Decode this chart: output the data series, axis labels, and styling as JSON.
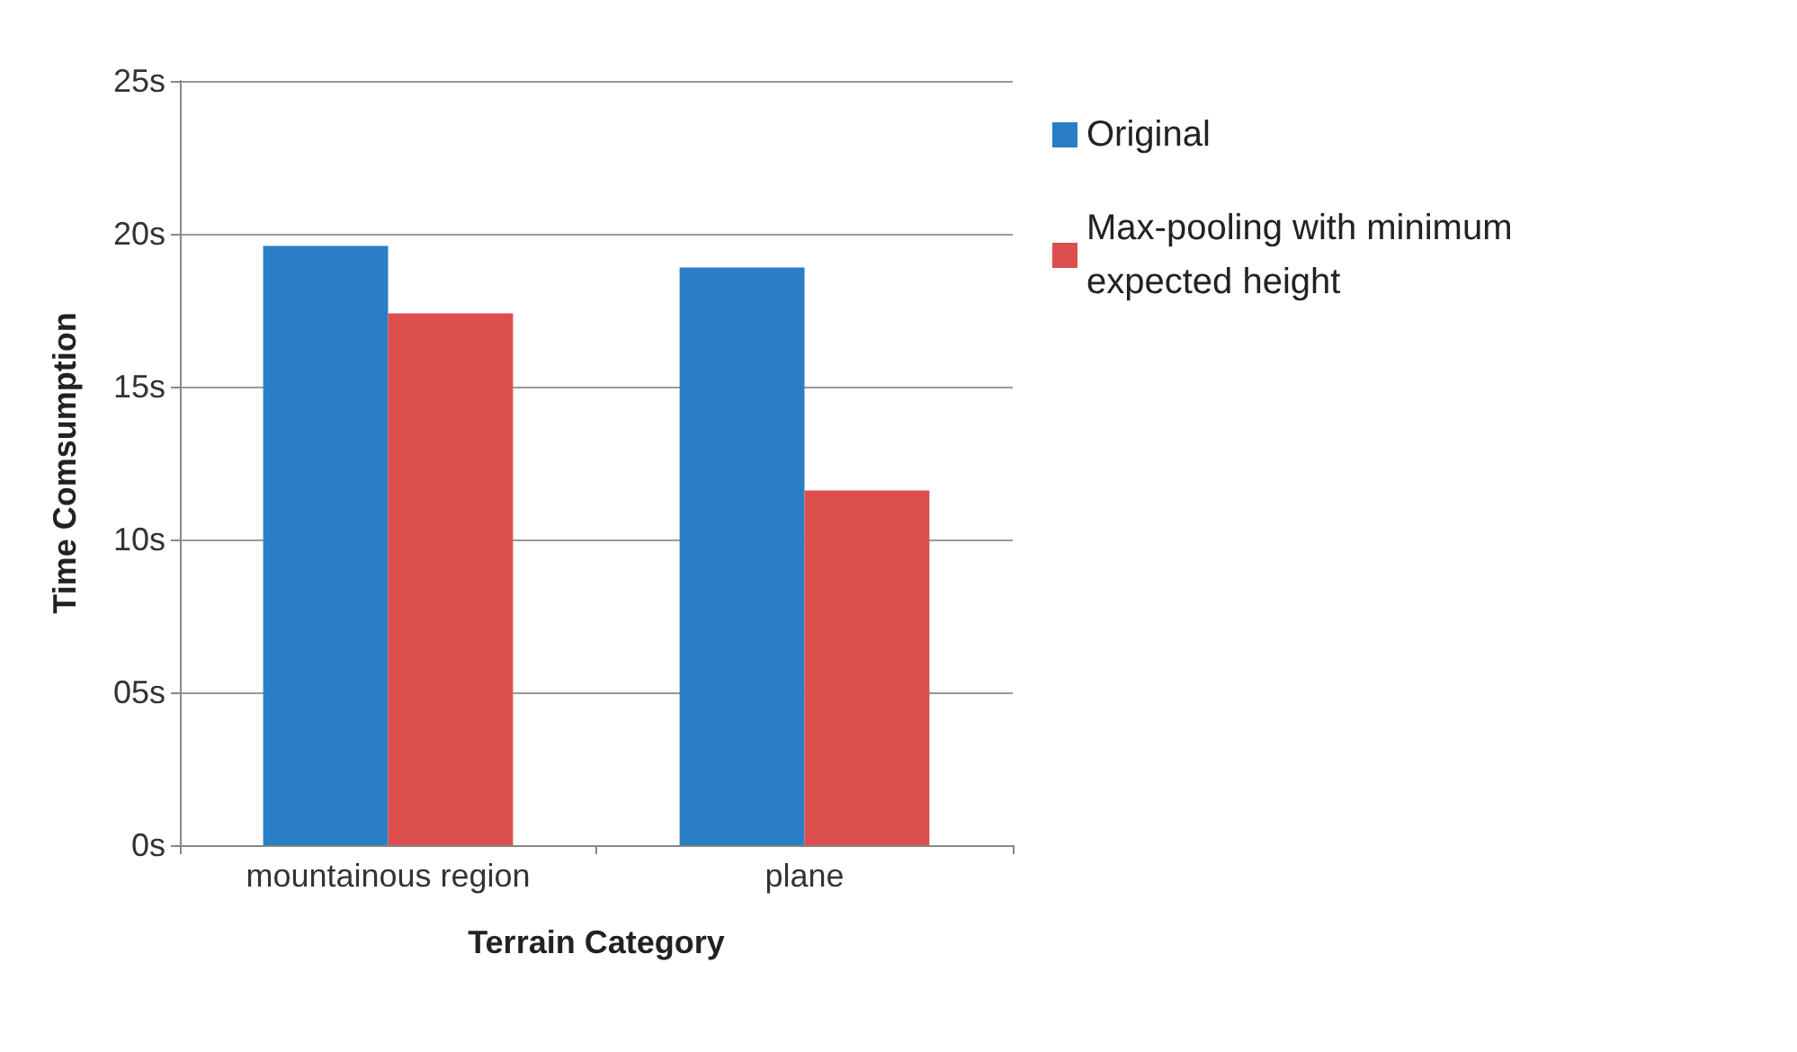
{
  "chart_data": {
    "type": "bar",
    "xlabel": "Terrain Category",
    "ylabel": "Time Comsumption",
    "categories": [
      "mountainous region",
      "plane"
    ],
    "series": [
      {
        "name": "Original",
        "color": "#2a7ec3",
        "values": [
          19.6,
          18.9
        ]
      },
      {
        "name": "Max-pooling with minimum\nexpected height",
        "color": "#dc4f4c",
        "values": [
          17.4,
          11.6
        ]
      }
    ],
    "ylim": [
      0,
      25
    ],
    "yticks": [
      {
        "value": 0,
        "label": "0s"
      },
      {
        "value": 5,
        "label": "05s"
      },
      {
        "value": 10,
        "label": "10s"
      },
      {
        "value": 15,
        "label": "15s"
      },
      {
        "value": 20,
        "label": "20s"
      },
      {
        "value": 25,
        "label": "25s"
      }
    ],
    "grid": "y",
    "legend": "right"
  }
}
